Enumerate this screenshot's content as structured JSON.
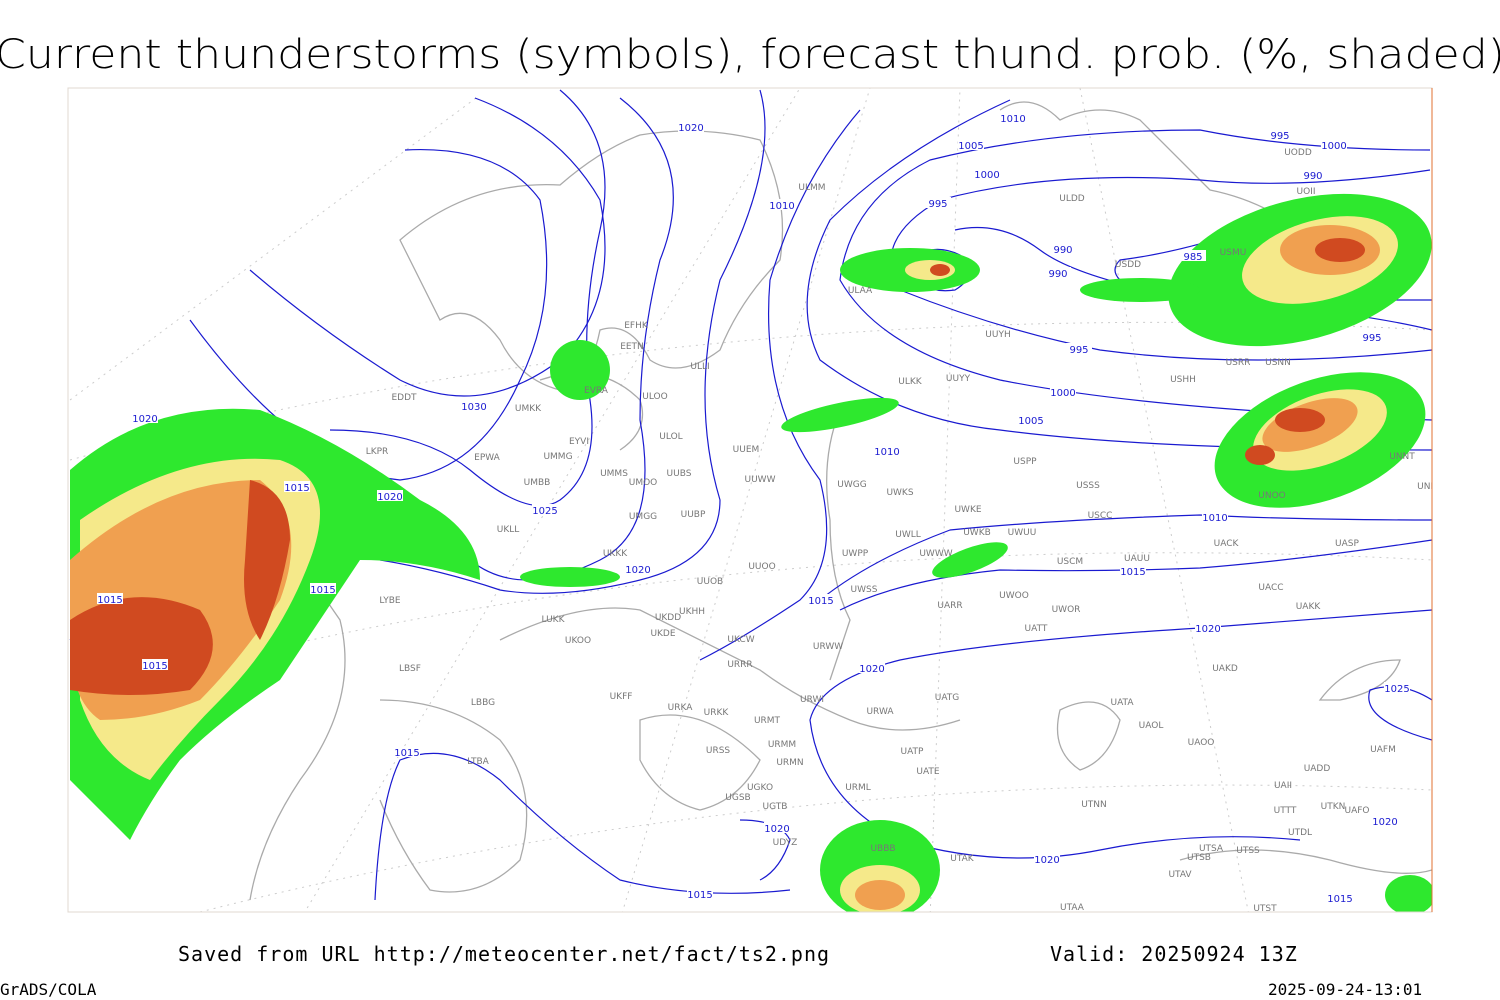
{
  "title": "Current thunderstorms (symbols), forecast thund. prob. (%, shaded)",
  "stations": [
    "ULMM",
    "ULDD",
    "UODD",
    "UOII",
    "USMU",
    "USDD",
    "ULAA",
    "UUYH",
    "UUYY",
    "ULKK",
    "USHH",
    "USRR",
    "USNN",
    "USPP",
    "UNNT",
    "UNBB",
    "USSS",
    "USCC",
    "UNOO",
    "UACK",
    "UASP",
    "USCM",
    "UAUU",
    "UWOO",
    "UWOR",
    "UATT",
    "UACC",
    "UAKK",
    "UAKD",
    "UATA",
    "UAOL",
    "UAOO",
    "UATG",
    "UWPP",
    "UWSS",
    "UWWW",
    "UWKE",
    "UWKB",
    "UWUU",
    "UWLL",
    "UWGG",
    "UWKS",
    "UARR",
    "URWW",
    "URWA",
    "URWI",
    "UATP",
    "UATE",
    "URML",
    "UTAK",
    "UTNN",
    "UTSA",
    "UTSS",
    "UTSB",
    "UTAV",
    "UTST",
    "UTAA",
    "UTTT",
    "UTDL",
    "UTKN",
    "UAFO",
    "UAII",
    "UADD",
    "UAFM",
    "UUEM",
    "UUWW",
    "UUBS",
    "UUBP",
    "UUOO",
    "UUOB",
    "EFHK",
    "EETN",
    "EVRA",
    "ULLI",
    "ULOO",
    "ULOL",
    "UMKK",
    "EYVI",
    "UMMG",
    "EPWA",
    "UMBB",
    "UMMS",
    "UMOO",
    "UMGG",
    "UKLL",
    "UKKK",
    "LUKK",
    "UKHH",
    "UKOO",
    "UKDD",
    "UKDE",
    "UKCW",
    "URRR",
    "UKFF",
    "URKA",
    "URKK",
    "URMT",
    "URMM",
    "URSS",
    "URMN",
    "UGKO",
    "UGSB",
    "UGTB",
    "LBSF",
    "LBBG",
    "LTBA",
    "EDDT",
    "LKPR",
    "LYBE",
    "UBBB",
    "UDYZ"
  ],
  "isobar_labels": [
    1020,
    1010,
    1005,
    1000,
    1010,
    995,
    995,
    1000,
    990,
    990,
    990,
    985,
    995,
    995,
    1000,
    1005,
    1010,
    1010,
    1015,
    1015,
    1020,
    1020,
    1020,
    1025,
    1030,
    1025,
    1020,
    1020,
    1015,
    1015,
    1015,
    1015,
    1020,
    1015,
    1015,
    1020,
    1015,
    1020
  ],
  "footer": {
    "saved": "Saved from URL http://meteocenter.net/fact/ts2.png",
    "valid": "Valid: 20250924 13Z",
    "software": "GrADS/COLA",
    "timestamp": "2025-09-24-13:01"
  }
}
